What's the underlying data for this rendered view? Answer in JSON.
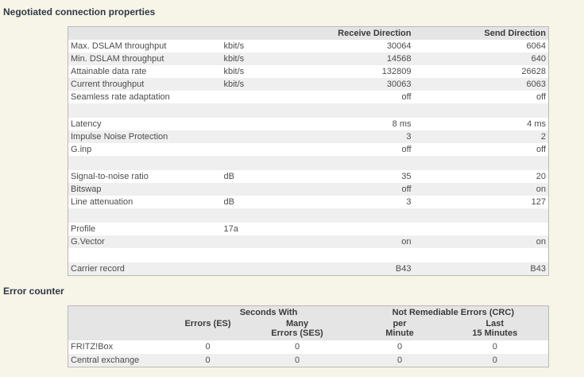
{
  "negotiated": {
    "title": "Negotiated connection properties",
    "columns": {
      "receive": "Receive Direction",
      "send": "Send Direction"
    },
    "rows": [
      {
        "name": "Max. DSLAM throughput",
        "unit": "kbit/s",
        "receive": "30064",
        "send": "6064"
      },
      {
        "name": "Min. DSLAM throughput",
        "unit": "kbit/s",
        "receive": "14568",
        "send": "640"
      },
      {
        "name": "Attainable data rate",
        "unit": "kbit/s",
        "receive": "132809",
        "send": "26628"
      },
      {
        "name": "Current throughput",
        "unit": "kbit/s",
        "receive": "30063",
        "send": "6063"
      },
      {
        "name": "Seamless rate adaptation",
        "unit": "",
        "receive": "off",
        "send": "off"
      },
      {
        "blank": true,
        "name": "",
        "unit": "",
        "receive": "",
        "send": ""
      },
      {
        "name": "Latency",
        "unit": "",
        "receive": "8 ms",
        "send": "4 ms"
      },
      {
        "name": "Impulse Noise Protection",
        "unit": "",
        "receive": "3",
        "send": "2"
      },
      {
        "name": "G.inp",
        "unit": "",
        "receive": "off",
        "send": "off"
      },
      {
        "blank": true,
        "name": "",
        "unit": "",
        "receive": "",
        "send": ""
      },
      {
        "name": "Signal-to-noise ratio",
        "unit": "dB",
        "receive": "35",
        "send": "20"
      },
      {
        "name": "Bitswap",
        "unit": "",
        "receive": "off",
        "send": "on"
      },
      {
        "name": "Line attenuation",
        "unit": "dB",
        "receive": "3",
        "send": "127"
      },
      {
        "blank": true,
        "name": "",
        "unit": "",
        "receive": "",
        "send": ""
      },
      {
        "name": "Profile",
        "unit": "17a",
        "receive": "",
        "send": ""
      },
      {
        "name": "G.Vector",
        "unit": "",
        "receive": "on",
        "send": "on"
      },
      {
        "blank": true,
        "name": "",
        "unit": "",
        "receive": "",
        "send": ""
      },
      {
        "name": "Carrier record",
        "unit": "",
        "receive": "B43",
        "send": "B43"
      }
    ]
  },
  "errors": {
    "title": "Error counter",
    "group_headers": {
      "seconds": "Seconds With",
      "crc": "Not Remediable Errors (CRC)"
    },
    "col_headers": [
      "Errors (ES)",
      "Many\nErrors (SES)",
      "per\nMinute",
      "Last\n15 Minutes"
    ],
    "rows": [
      {
        "name": "FRITZ!Box",
        "values": [
          "0",
          "0",
          "0",
          "0"
        ]
      },
      {
        "name": "Central exchange",
        "values": [
          "0",
          "0",
          "0",
          "0"
        ]
      }
    ]
  },
  "colors": {
    "page_background": "#f7f4e8",
    "table_background": "#ffffff",
    "header_band": "#e5e5e5",
    "alt_row": "#efefef",
    "table_border": "#b9b9b9",
    "text": "#4c4c4c",
    "title_text": "#2f3a44"
  }
}
